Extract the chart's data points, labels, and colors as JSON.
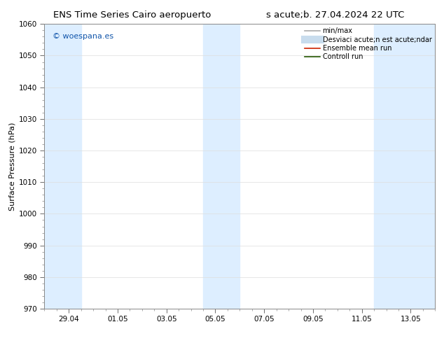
{
  "title_left": "ENS Time Series Cairo aeropuerto",
  "title_right": "s acute;b. 27.04.2024 22 UTC",
  "ylabel": "Surface Pressure (hPa)",
  "ylim": [
    970,
    1060
  ],
  "yticks": [
    970,
    980,
    990,
    1000,
    1010,
    1020,
    1030,
    1040,
    1050,
    1060
  ],
  "x_labels": [
    "29.04",
    "01.05",
    "03.05",
    "05.05",
    "07.05",
    "09.05",
    "11.05",
    "13.05"
  ],
  "x_tick_positions": [
    1,
    3,
    5,
    7,
    9,
    11,
    13,
    15
  ],
  "xlim": [
    0,
    16
  ],
  "shaded_bands": [
    {
      "x_start": 0.0,
      "x_end": 1.5
    },
    {
      "x_start": 6.5,
      "x_end": 8.0
    },
    {
      "x_start": 13.5,
      "x_end": 16.0
    }
  ],
  "shaded_color": "#ddeeff",
  "watermark_text": "© woespana.es",
  "watermark_color": "#1155aa",
  "background_color": "#ffffff",
  "legend_items": [
    {
      "label": "min/max",
      "color": "#aaaaaa",
      "lw": 1.2,
      "style": "-"
    },
    {
      "label": "Desviaci acute;n est acute;ndar",
      "color": "#c8dced",
      "lw": 8,
      "style": "-"
    },
    {
      "label": "Ensemble mean run",
      "color": "#cc2200",
      "lw": 1.2,
      "style": "-"
    },
    {
      "label": "Controll run",
      "color": "#225500",
      "lw": 1.2,
      "style": "-"
    }
  ],
  "figsize": [
    6.34,
    4.9
  ],
  "dpi": 100,
  "title_fontsize": 9.5,
  "axis_label_fontsize": 8,
  "tick_fontsize": 7.5,
  "legend_fontsize": 7,
  "watermark_fontsize": 8
}
